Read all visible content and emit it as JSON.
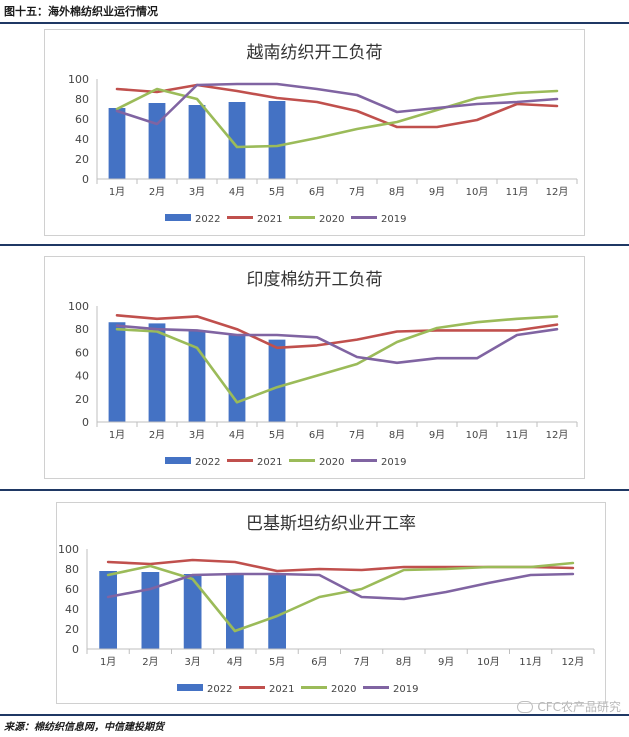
{
  "figure_title": "图十五：海外棉纺织业运行情况",
  "source": "来源：棉纺织信息网，中信建投期货",
  "watermark": "CFC农产品研究",
  "colors": {
    "2022": "#4472c4",
    "2021": "#c0504d",
    "2020": "#9bbb59",
    "2019": "#8064a2",
    "rule": "#1f3864"
  },
  "chart_data": [
    {
      "type": "bar+line",
      "title": "越南纺织开工负荷",
      "categories": [
        "1月",
        "2月",
        "3月",
        "4月",
        "5月",
        "6月",
        "7月",
        "8月",
        "9月",
        "10月",
        "11月",
        "12月"
      ],
      "ylim": [
        0,
        100
      ],
      "yticks": [
        "0",
        "20",
        "40",
        "60",
        "80",
        "100"
      ],
      "grid": false,
      "legend_position": "bottom",
      "bar_series": {
        "name": "2022",
        "values": [
          71,
          76,
          74,
          77,
          78
        ]
      },
      "series": [
        {
          "name": "2021",
          "values": [
            90,
            87,
            94,
            88,
            81,
            77,
            68,
            52,
            52,
            59,
            75,
            73
          ]
        },
        {
          "name": "2020",
          "values": [
            70,
            90,
            80,
            32,
            33,
            41,
            50,
            57,
            69,
            81,
            86,
            88
          ]
        },
        {
          "name": "2019",
          "values": [
            68,
            55,
            94,
            95,
            95,
            90,
            84,
            67,
            71,
            75,
            77,
            80
          ]
        }
      ]
    },
    {
      "type": "bar+line",
      "title": "印度棉纺开工负荷",
      "categories": [
        "1月",
        "2月",
        "3月",
        "4月",
        "5月",
        "6月",
        "7月",
        "8月",
        "9月",
        "10月",
        "11月",
        "12月"
      ],
      "ylim": [
        0,
        100
      ],
      "yticks": [
        "0",
        "20",
        "40",
        "60",
        "80",
        "100"
      ],
      "grid": false,
      "legend_position": "bottom",
      "bar_series": {
        "name": "2022",
        "values": [
          86,
          85,
          79,
          75,
          71
        ]
      },
      "series": [
        {
          "name": "2021",
          "values": [
            92,
            89,
            91,
            80,
            64,
            66,
            71,
            78,
            79,
            79,
            79,
            84
          ]
        },
        {
          "name": "2020",
          "values": [
            80,
            78,
            64,
            17,
            30,
            40,
            50,
            69,
            81,
            86,
            89,
            91
          ]
        },
        {
          "name": "2019",
          "values": [
            83,
            80,
            79,
            75,
            75,
            73,
            56,
            51,
            55,
            55,
            75,
            80
          ]
        }
      ]
    },
    {
      "type": "bar+line",
      "title": "巴基斯坦纺织业开工率",
      "categories": [
        "1月",
        "2月",
        "3月",
        "4月",
        "5月",
        "6月",
        "7月",
        "8月",
        "9月",
        "10月",
        "11月",
        "12月"
      ],
      "ylim": [
        0,
        100
      ],
      "yticks": [
        "0",
        "20",
        "40",
        "60",
        "80",
        "100"
      ],
      "grid": false,
      "legend_position": "bottom",
      "bar_series": {
        "name": "2022",
        "values": [
          78,
          77,
          75,
          75,
          74
        ]
      },
      "series": [
        {
          "name": "2021",
          "values": [
            87,
            85,
            89,
            87,
            78,
            80,
            79,
            82,
            82,
            82,
            82,
            81
          ]
        },
        {
          "name": "2020",
          "values": [
            74,
            83,
            70,
            18,
            33,
            52,
            60,
            79,
            80,
            82,
            82,
            86
          ]
        },
        {
          "name": "2019",
          "values": [
            52,
            60,
            74,
            75,
            75,
            74,
            52,
            50,
            57,
            66,
            74,
            75
          ]
        }
      ]
    }
  ]
}
